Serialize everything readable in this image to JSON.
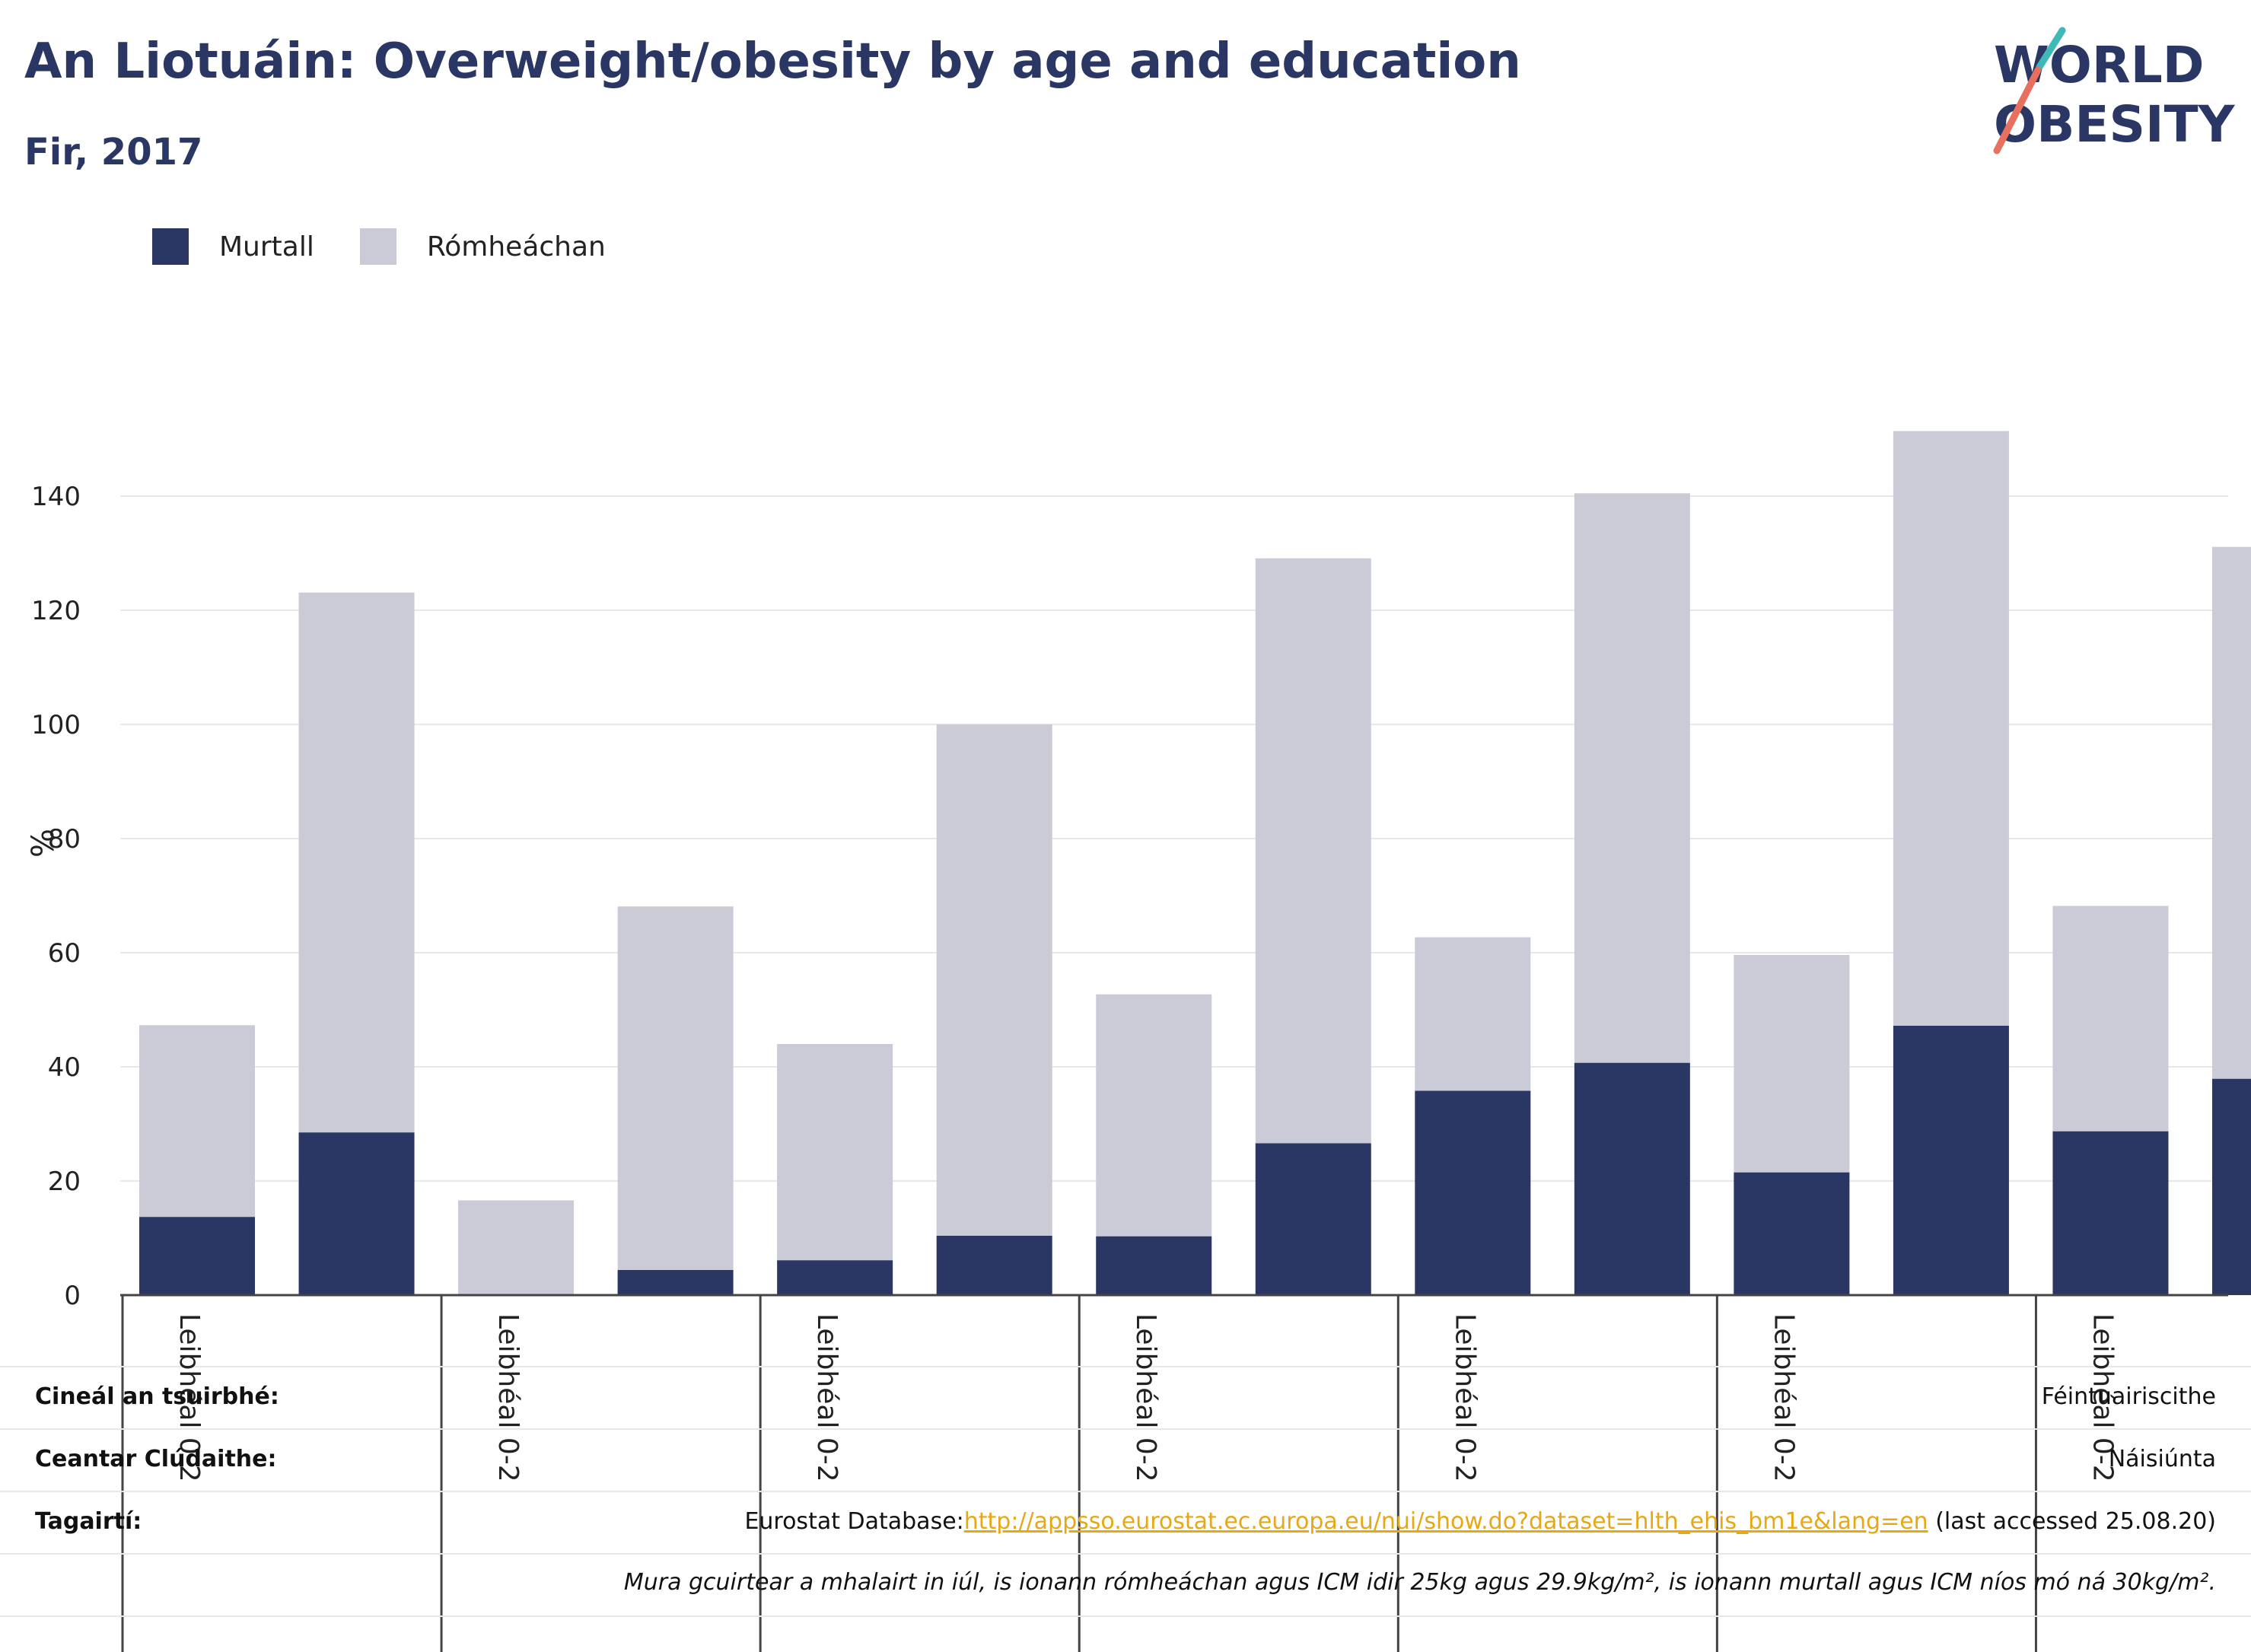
{
  "title": "An Liotuáin: Overweight/obesity by age and education",
  "subtitle": "Fir, 2017",
  "logo": {
    "line1": "WORLD",
    "line2": "OBESITY"
  },
  "colors": {
    "obese": "#2a3663",
    "overweight": "#cacbd6",
    "accent_teal": "#3fb8b8",
    "accent_red": "#e8705e"
  },
  "legend": [
    {
      "label": "Murtall",
      "color": "#2a3663"
    },
    {
      "label": "Rómheáchan",
      "color": "#cacbd6"
    }
  ],
  "chart_data": {
    "type": "bar",
    "stacked": true,
    "ylabel": "%",
    "ylim": [
      0,
      150
    ],
    "yticks": [
      0,
      20,
      40,
      60,
      80,
      100,
      120,
      140
    ],
    "grid": true,
    "legend_position": "top-left",
    "group_labels": [
      "Leibhéal 0-2",
      "Leibhéal 0-2",
      "Leibhéal 0-2",
      "Leibhéal 0-2",
      "Leibhéal 0-2",
      "Leibhéal 0-2",
      "Leibhéal 0-2"
    ],
    "series": [
      {
        "name": "Murtall",
        "values": [
          13.7,
          28.5,
          0,
          4.4,
          6.1,
          10.4,
          10.3,
          26.6,
          35.8,
          40.7,
          21.5,
          47.2,
          28.7,
          37.9
        ]
      },
      {
        "name": "Rómheáchan",
        "values": [
          33.6,
          94.6,
          16.6,
          63.7,
          37.9,
          89.6,
          42.4,
          102.5,
          26.9,
          99.8,
          38.1,
          104.2,
          39.5,
          93.2
        ]
      }
    ]
  },
  "meta": {
    "survey_type_label": "Cineál an tsuirbhé:",
    "survey_type_value": "Féintuairiscithe",
    "coverage_label": "Ceantar Clúdaithe:",
    "coverage_value": "Náisiúnta",
    "references_label": "Tagairtí:",
    "reference_prefix": "Eurostat Database:",
    "reference_url": "http://appsso.eurostat.ec.europa.eu/nui/show.do?dataset=hlth_ehis_bm1e&lang=en",
    "reference_suffix": " (last accessed 25.08.20)",
    "note": "Mura gcuirtear a mhalairt in iúl, is ionann rómheáchan agus ICM idir 25kg agus 29.9kg/m², is ionann murtall agus ICM níos mó ná 30kg/m²."
  }
}
